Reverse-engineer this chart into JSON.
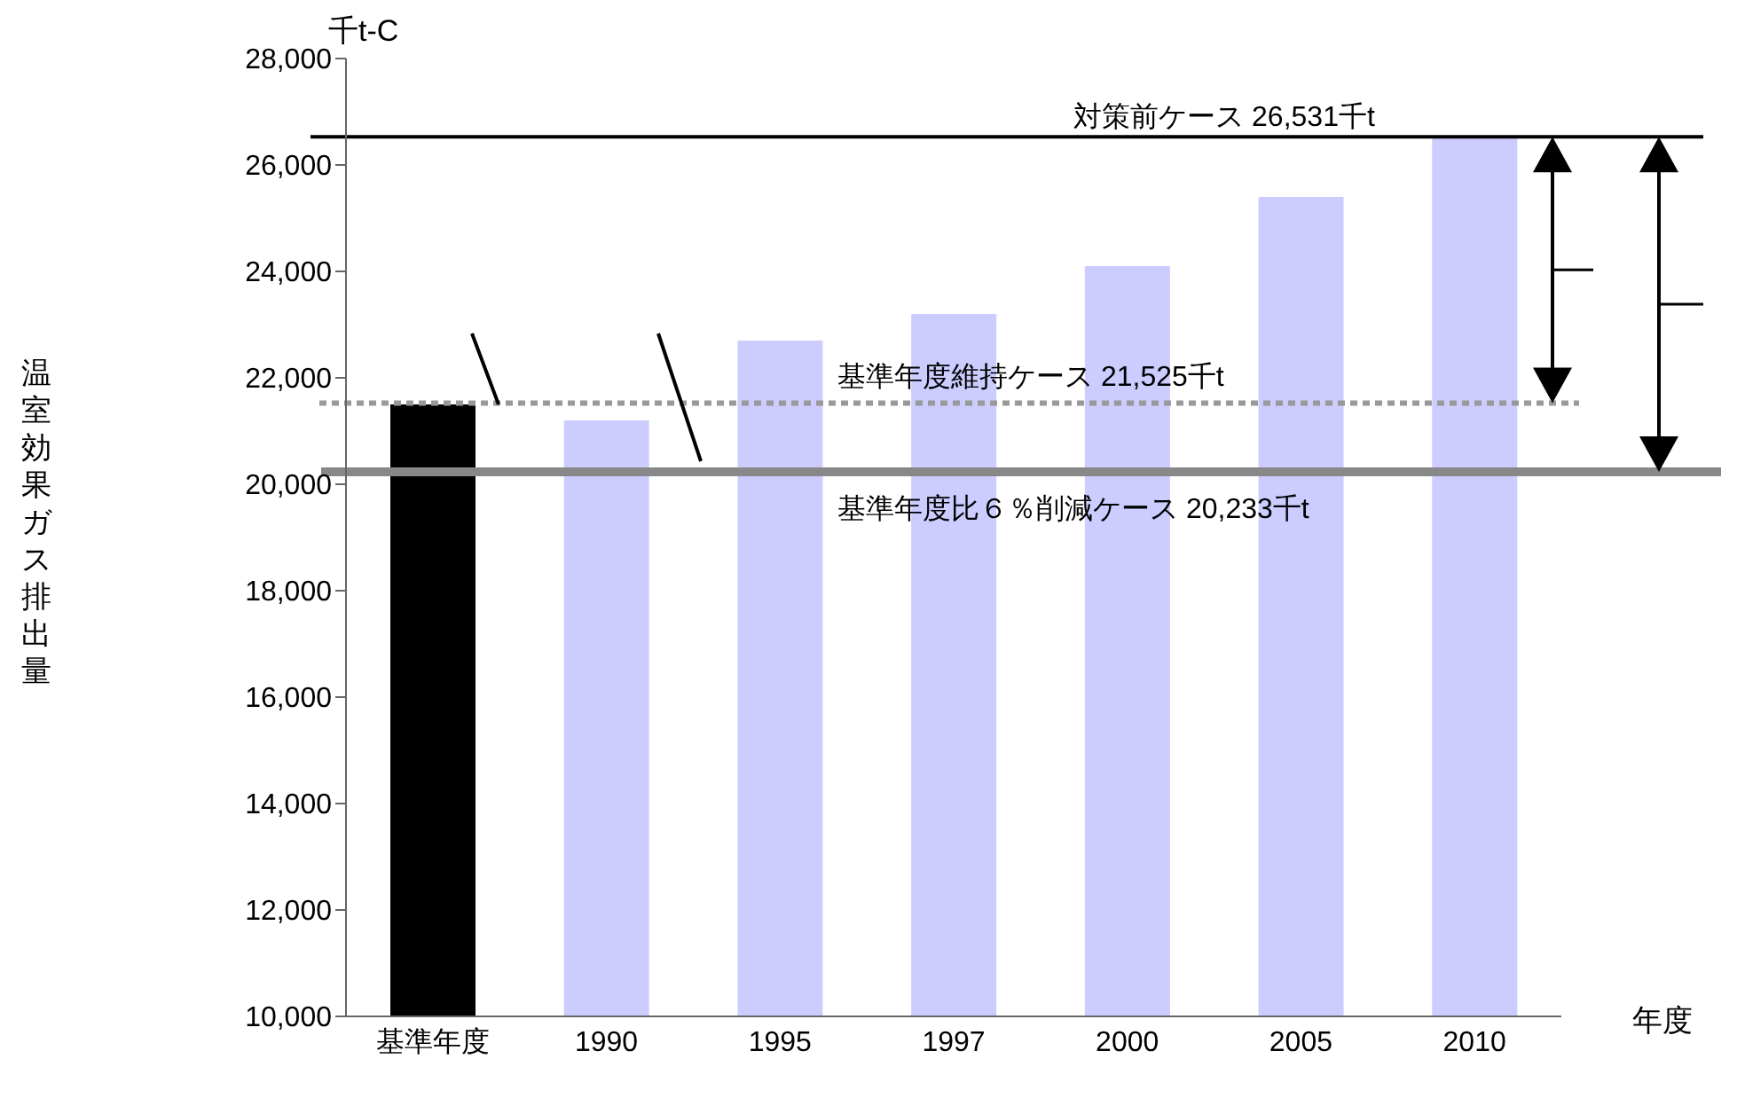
{
  "chart_data": {
    "type": "bar",
    "xlabel": "年度",
    "ylabel": "温室効果ガス排出量",
    "annotations": [
      "千t-C"
    ],
    "categories": [
      "基準年度",
      "1990",
      "1995",
      "1997",
      "2000",
      "2005",
      "2010"
    ],
    "values": [
      21500,
      21200,
      22700,
      23200,
      24100,
      25400,
      26500
    ],
    "colors": [
      "#000000",
      "#ccccff",
      "#ccccff",
      "#ccccff",
      "#ccccff",
      "#ccccff",
      "#ccccff"
    ],
    "ylim": [
      10000,
      28000
    ],
    "yticks": [
      {
        "value": 10000,
        "label": "10,000"
      },
      {
        "value": 12000,
        "label": "12,000"
      },
      {
        "value": 14000,
        "label": "14,000"
      },
      {
        "value": 16000,
        "label": "16,000"
      },
      {
        "value": 18000,
        "label": "18,000"
      },
      {
        "value": 20000,
        "label": "20,000"
      },
      {
        "value": 22000,
        "label": "22,000"
      },
      {
        "value": 24000,
        "label": "24,000"
      },
      {
        "value": 26000,
        "label": "26,000"
      },
      {
        "value": 28000,
        "label": "28,000"
      }
    ],
    "ref_lines": [
      {
        "axis": "y",
        "value": 26531,
        "label": "対策前ケース  26,531千t",
        "color": "#000000",
        "line_style": "solid"
      },
      {
        "axis": "y",
        "value": 21525,
        "label": "基準年度維持ケース  21,525千t",
        "color": "#999999",
        "line_style": "dotted"
      },
      {
        "axis": "y",
        "value": 20233,
        "label": "基準年度比６％削減ケース  20,233千t",
        "color": "#888888",
        "line_style": "solid"
      }
    ]
  }
}
